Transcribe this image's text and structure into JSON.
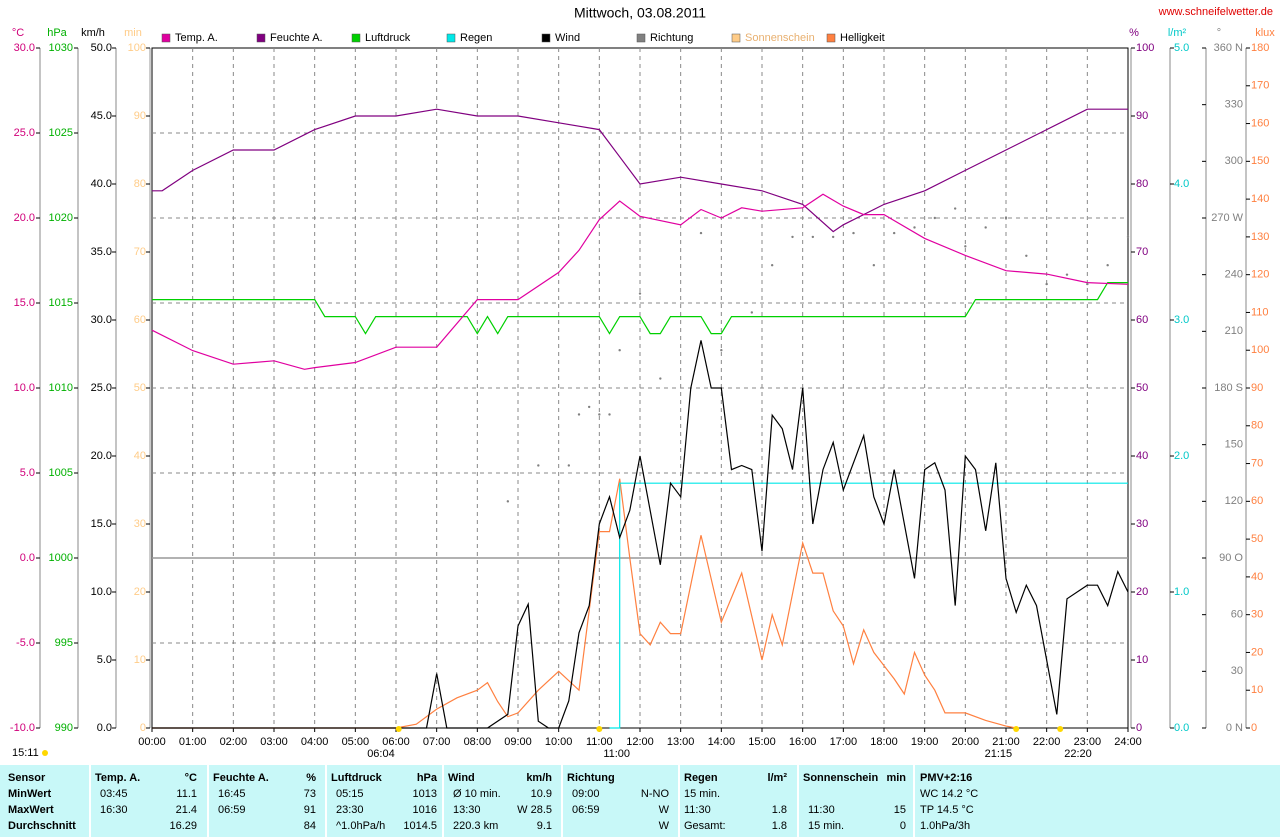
{
  "chart_data": {
    "type": "line",
    "title": "Mittwoch, 03.08.2011",
    "source": "www.schneifelwetter.de",
    "updated": "15:11",
    "grid": true,
    "xlim": [
      0,
      24
    ],
    "xticks": [
      {
        "value": 0,
        "label": "00:00"
      },
      {
        "value": 1,
        "label": "01:00"
      },
      {
        "value": 2,
        "label": "02:00"
      },
      {
        "value": 3,
        "label": "03:00"
      },
      {
        "value": 4,
        "label": "04:00"
      },
      {
        "value": 5,
        "label": "05:00"
      },
      {
        "value": 6,
        "label": "06:00"
      },
      {
        "value": 7,
        "label": "07:00"
      },
      {
        "value": 8,
        "label": "08:00"
      },
      {
        "value": 9,
        "label": "09:00"
      },
      {
        "value": 10,
        "label": "10:00"
      },
      {
        "value": 11,
        "label": "11:00"
      },
      {
        "value": 12,
        "label": "12:00"
      },
      {
        "value": 13,
        "label": "13:00"
      },
      {
        "value": 14,
        "label": "14:00"
      },
      {
        "value": 15,
        "label": "15:00"
      },
      {
        "value": 16,
        "label": "16:00"
      },
      {
        "value": 17,
        "label": "17:00"
      },
      {
        "value": 18,
        "label": "18:00"
      },
      {
        "value": 19,
        "label": "19:00"
      },
      {
        "value": 20,
        "label": "20:00"
      },
      {
        "value": 21,
        "label": "21:00"
      },
      {
        "value": 22,
        "label": "22:00"
      },
      {
        "value": 23,
        "label": "23:00"
      },
      {
        "value": 24,
        "label": "24:00"
      }
    ],
    "axes": [
      {
        "title": "°C",
        "color": "#d0007a",
        "lim": [
          -10,
          30
        ],
        "ticks": [
          {
            "value": -10,
            "label": "-10.0"
          },
          {
            "value": -5,
            "label": "-5.0"
          },
          {
            "value": 0,
            "label": "0.0"
          },
          {
            "value": 5,
            "label": "5.0"
          },
          {
            "value": 10,
            "label": "10.0"
          },
          {
            "value": 15,
            "label": "15.0"
          },
          {
            "value": 20,
            "label": "20.0"
          },
          {
            "value": 25,
            "label": "25.0"
          },
          {
            "value": 30,
            "label": "30.0"
          }
        ]
      },
      {
        "title": "hPa",
        "color": "#00b000",
        "lim": [
          990,
          1030
        ],
        "ticks": [
          990,
          995,
          1000,
          1005,
          1010,
          1015,
          1020,
          1025,
          1030
        ]
      },
      {
        "title": "km/h",
        "color": "#000000",
        "lim": [
          0,
          50
        ],
        "ticks": [
          {
            "value": 0,
            "label": "0.0"
          },
          {
            "value": 5,
            "label": "5.0"
          },
          {
            "value": 10,
            "label": "10.0"
          },
          {
            "value": 15,
            "label": "15.0"
          },
          {
            "value": 20,
            "label": "20.0"
          },
          {
            "value": 25,
            "label": "25.0"
          },
          {
            "value": 30,
            "label": "30.0"
          },
          {
            "value": 35,
            "label": "35.0"
          },
          {
            "value": 40,
            "label": "40.0"
          },
          {
            "value": 45,
            "label": "45.0"
          },
          {
            "value": 50,
            "label": "50.0"
          }
        ]
      },
      {
        "title": "min",
        "color": "#ffcc88",
        "lim": [
          0,
          100
        ],
        "ticks": [
          0,
          10,
          20,
          30,
          40,
          50,
          60,
          70,
          80,
          90,
          100
        ]
      },
      {
        "title": "%",
        "color": "#800080",
        "lim": [
          0,
          100
        ],
        "ticks": [
          0,
          10,
          20,
          30,
          40,
          50,
          60,
          70,
          80,
          90,
          100
        ]
      },
      {
        "title": "l/m²",
        "color": "#00c8c8",
        "lim": [
          0,
          5
        ],
        "ticks": [
          {
            "value": 0,
            "label": "0.0"
          },
          {
            "value": 1,
            "label": "1.0"
          },
          {
            "value": 2,
            "label": "2.0"
          },
          {
            "value": 3,
            "label": "3.0"
          },
          {
            "value": 4,
            "label": "4.0"
          },
          {
            "value": 5,
            "label": "5.0"
          }
        ]
      },
      {
        "title": "°",
        "color": "#808080",
        "lim": [
          0,
          360
        ],
        "ticks": [
          {
            "value": 0,
            "label": "0 N"
          },
          30,
          60,
          {
            "value": 90,
            "label": "90 O"
          },
          120,
          150,
          {
            "value": 180,
            "label": "180 S"
          },
          210,
          240,
          {
            "value": 270,
            "label": "270 W"
          },
          300,
          330,
          {
            "value": 360,
            "label": "360 N"
          }
        ]
      },
      {
        "title": "klux",
        "color": "#ff8040",
        "lim": [
          0,
          180
        ],
        "ticks": [
          0,
          10,
          20,
          30,
          40,
          50,
          60,
          70,
          80,
          90,
          100,
          110,
          120,
          130,
          140,
          150,
          160,
          170,
          180
        ]
      }
    ],
    "series": [
      {
        "name": "Temp. A.",
        "color": "#e000a0",
        "axis": 0,
        "style": "line",
        "x": [
          0,
          1,
          2,
          3,
          3.75,
          4,
          5,
          6,
          7,
          8,
          9,
          10,
          10.5,
          11,
          11.5,
          12,
          13,
          13.5,
          14,
          14.5,
          15,
          16,
          16.5,
          17,
          17.5,
          18,
          19,
          20,
          21,
          22,
          23,
          24
        ],
        "values": [
          13.4,
          12.2,
          11.4,
          11.6,
          11.1,
          11.2,
          11.5,
          12.4,
          12.4,
          15.2,
          15.2,
          16.8,
          18.1,
          19.9,
          21.0,
          20.1,
          19.6,
          20.5,
          20.0,
          20.6,
          20.4,
          20.6,
          21.4,
          20.7,
          20.2,
          20.2,
          18.8,
          17.8,
          16.9,
          16.7,
          16.2,
          16.1
        ]
      },
      {
        "name": "Feuchte A.",
        "color": "#800080",
        "axis": 4,
        "style": "line",
        "x": [
          0,
          0.25,
          1,
          2,
          3,
          4,
          5,
          6,
          7,
          8,
          9,
          10,
          11,
          11.5,
          12,
          13,
          14,
          15,
          16,
          16.75,
          17,
          18,
          19,
          20,
          21,
          22,
          23,
          24
        ],
        "values": [
          79,
          79,
          82,
          85,
          85,
          88,
          90,
          90,
          91,
          90,
          90,
          89,
          88,
          84,
          80,
          81,
          80,
          79,
          77,
          73,
          74,
          77,
          79,
          82,
          85,
          88,
          91,
          91
        ]
      },
      {
        "name": "Luftdruck",
        "color": "#00d000",
        "axis": 1,
        "style": "line",
        "x": [
          0,
          4,
          4.25,
          5,
          5.25,
          5.5,
          7.75,
          8,
          8.25,
          8.5,
          8.75,
          11,
          11.25,
          11.5,
          12,
          12.25,
          12.5,
          12.75,
          13.5,
          13.75,
          14,
          14.25,
          20,
          20.25,
          23.25,
          23.5,
          24
        ],
        "values": [
          1015.2,
          1015.2,
          1014.2,
          1014.2,
          1013.2,
          1014.2,
          1014.2,
          1013.2,
          1014.2,
          1013.2,
          1014.2,
          1014.2,
          1013.2,
          1014.2,
          1014.2,
          1013.2,
          1013.2,
          1014.2,
          1014.2,
          1013.2,
          1013.2,
          1014.2,
          1014.2,
          1015.2,
          1015.2,
          1016.2,
          1016.2
        ]
      },
      {
        "name": "Regen",
        "color": "#00e8e8",
        "axis": 5,
        "style": "line",
        "x": [
          11.25,
          11.5,
          11.5,
          24
        ],
        "values": [
          0,
          0,
          1.8,
          1.8
        ]
      },
      {
        "name": "Wind",
        "color": "#000000",
        "axis": 2,
        "style": "line",
        "x": [
          0,
          6.75,
          7,
          7.25,
          8.25,
          8.75,
          9,
          9.25,
          9.5,
          9.75,
          10,
          10.25,
          10.5,
          10.75,
          11,
          11.25,
          11.5,
          11.75,
          12,
          12.5,
          12.75,
          13,
          13.25,
          13.5,
          13.75,
          14,
          14.25,
          14.5,
          14.75,
          15,
          15.25,
          15.5,
          15.75,
          16,
          16.25,
          16.5,
          16.75,
          17,
          17.5,
          17.75,
          18,
          18.25,
          18.75,
          19,
          19.25,
          19.5,
          19.75,
          20,
          20.25,
          20.5,
          20.75,
          21,
          21.25,
          21.5,
          21.75,
          22.25,
          22.5,
          23,
          23.25,
          23.5,
          23.75,
          24
        ],
        "values": [
          0,
          0,
          4,
          0,
          0,
          1,
          7.5,
          9.1,
          0.5,
          0,
          0,
          2,
          7,
          9,
          15,
          17,
          14,
          16,
          20,
          12,
          18,
          17,
          25,
          28.5,
          25,
          25,
          19,
          19.3,
          19,
          13,
          23,
          22,
          19,
          25,
          15,
          19,
          21,
          17.5,
          21.5,
          17,
          15,
          19,
          11,
          19,
          19.5,
          17.5,
          9,
          20,
          19,
          14.5,
          19.5,
          11,
          8.5,
          10.5,
          9,
          1,
          9.5,
          10.5,
          10.5,
          9,
          11.5,
          10
        ]
      },
      {
        "name": "Richtung",
        "color": "#808080",
        "axis": 6,
        "style": "dots",
        "x": [
          8.75,
          9.5,
          10.25,
          10.5,
          10.75,
          11,
          11.25,
          11.5,
          12,
          12.5,
          13.5,
          14,
          14.75,
          15.25,
          15.75,
          16.25,
          16.75,
          17.25,
          17.75,
          18.25,
          18.75,
          19.25,
          19.75,
          20,
          20.5,
          21,
          21.5,
          22,
          22.5,
          23,
          23.5,
          24
        ],
        "values": [
          120,
          139,
          139,
          166,
          170,
          166,
          166,
          200,
          230,
          185,
          262,
          200,
          220,
          245,
          260,
          260,
          260,
          262,
          245,
          262,
          265,
          270,
          275,
          255,
          265,
          270,
          250,
          235,
          240,
          235,
          245,
          260
        ]
      },
      {
        "name": "Sonnenschein",
        "color": "#ffcc88",
        "axis": 3,
        "style": "line"
      },
      {
        "name": "Helligkeit",
        "color": "#ff8040",
        "axis": 7,
        "style": "line",
        "x": [
          0,
          6,
          6.5,
          7,
          7.5,
          8,
          8.25,
          8.5,
          8.75,
          9,
          9.5,
          10,
          10.5,
          11,
          11.25,
          11.5,
          11.75,
          12,
          12.25,
          12.5,
          12.75,
          13,
          13.5,
          14,
          14.5,
          15,
          15.25,
          15.5,
          16,
          16.25,
          16.5,
          16.75,
          17,
          17.25,
          17.5,
          17.75,
          18.25,
          18.5,
          18.75,
          19,
          19.25,
          19.5,
          20,
          20.5,
          21,
          21.25
        ],
        "values": [
          0,
          0,
          1,
          5,
          8,
          10,
          12,
          7,
          3,
          4,
          10,
          15,
          10,
          52,
          52,
          66,
          45,
          25,
          22,
          28,
          25,
          25,
          51,
          28,
          41,
          18,
          30,
          22,
          49,
          41,
          41,
          31,
          27,
          17,
          26,
          20,
          13,
          9,
          20,
          14,
          10,
          4,
          4,
          2,
          0.5,
          0
        ]
      }
    ],
    "annotations": [
      {
        "text": "06:04",
        "x": 6.067
      },
      {
        "text": "11:00",
        "x": 11
      },
      {
        "text": "21:15",
        "x": 21.25
      },
      {
        "text": "22:20",
        "x": 22.333
      }
    ]
  },
  "stats_table": {
    "header": [
      "Sensor",
      "Temp. A.",
      "°C",
      "Feuchte A.",
      "%",
      "Luftdruck",
      "hPa",
      "Wind",
      "km/h",
      "Richtung",
      "Regen",
      "l/m²",
      "Sonnenschein",
      "min",
      "PMV+2:16"
    ],
    "rows": [
      [
        "MinWert",
        "03:45",
        "11.1",
        "16:45",
        "73",
        "05:15",
        "1013",
        "Ø 10 min.",
        "10.9",
        "09:00",
        "N-NO",
        "15 min.",
        null,
        null,
        null,
        "WC 14.2 °C"
      ],
      [
        "MaxWert",
        "16:30",
        "21.4",
        "06:59",
        "91",
        "23:30",
        "1016",
        "13:30",
        "W 28.5",
        "06:59",
        "W",
        "11:30",
        "1.8",
        "11:30",
        "15",
        "TP 14.5 °C"
      ],
      [
        "Durchschnitt",
        null,
        "16.29",
        null,
        "84",
        "^1.0hPa/h",
        "1014.5",
        "220.3 km",
        "9.1",
        null,
        "W",
        "Gesamt:",
        "1.8",
        "15 min.",
        "0",
        "1.0hPa/3h"
      ]
    ]
  }
}
